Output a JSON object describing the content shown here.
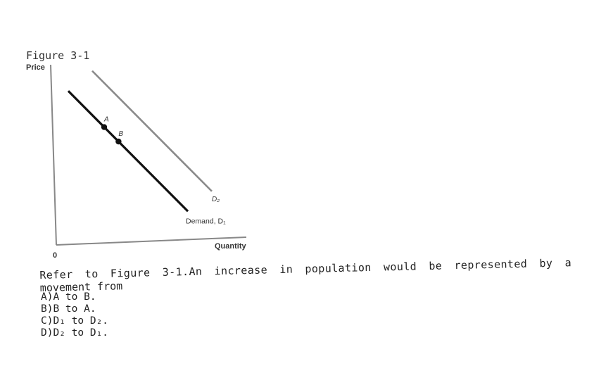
{
  "figure": {
    "title": "Figure 3-1"
  },
  "chart_data": {
    "type": "line",
    "xlabel": "Quantity",
    "ylabel": "Price",
    "origin_label": "0",
    "series": [
      {
        "name": "Demand, D₁",
        "values": [
          [
            0.5,
            7.5
          ],
          [
            5.5,
            1.5
          ]
        ]
      },
      {
        "name": "D₂",
        "values": [
          [
            1.5,
            8.5
          ],
          [
            6.5,
            2.5
          ]
        ]
      }
    ],
    "points": [
      {
        "label": "A",
        "x": 2.0,
        "y": 5.7
      },
      {
        "label": "B",
        "x": 2.6,
        "y": 4.98
      }
    ],
    "xlim": [
      0,
      7.5
    ],
    "ylim": [
      0,
      9
    ]
  },
  "question": {
    "words": [
      "Refer",
      "to",
      "Figure",
      "3-1.An",
      "increase",
      "in",
      "population",
      "would",
      "be",
      "represented",
      "by",
      "a"
    ],
    "continuation": "movement from"
  },
  "options": [
    {
      "key": "A)",
      "text": "A to B."
    },
    {
      "key": "B)",
      "text": "B to A."
    },
    {
      "key": "C)",
      "text": "D₁ to D₂."
    },
    {
      "key": "D)",
      "text": "D₂ to D₁."
    }
  ]
}
